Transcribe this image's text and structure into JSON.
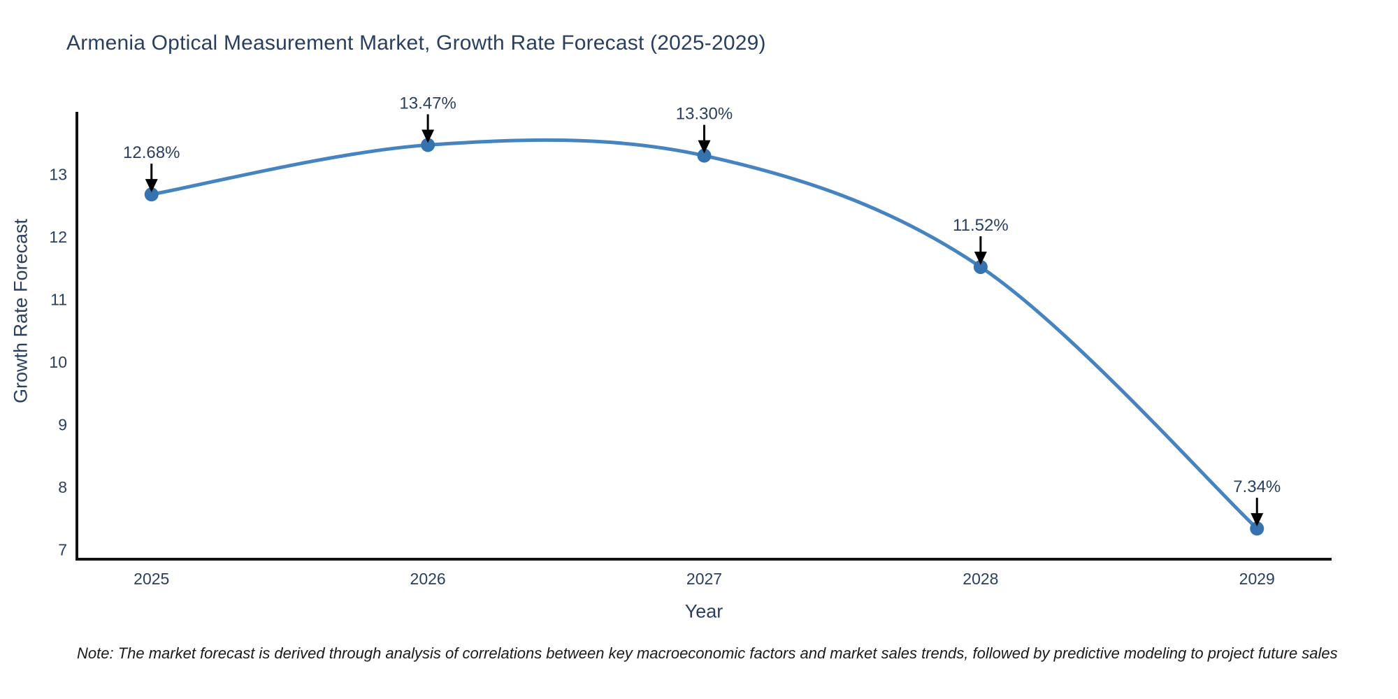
{
  "title": "Armenia Optical Measurement Market, Growth Rate Forecast (2025-2029)",
  "note": "Note: The market forecast is derived through analysis of correlations between key macroeconomic factors and market sales trends, followed by predictive modeling to project future sales",
  "chart_data": {
    "type": "line",
    "title": "Armenia Optical Measurement Market, Growth Rate Forecast (2025-2029)",
    "xlabel": "Year",
    "ylabel": "Growth Rate Forecast",
    "x": [
      2025,
      2026,
      2027,
      2028,
      2029
    ],
    "values": [
      12.68,
      13.47,
      13.3,
      11.52,
      7.34
    ],
    "point_labels": [
      "12.68%",
      "13.47%",
      "13.30%",
      "11.52%",
      "7.34%"
    ],
    "xticks": [
      "2025",
      "2026",
      "2027",
      "2028",
      "2029"
    ],
    "yticks": [
      7,
      8,
      9,
      10,
      11,
      12,
      13
    ],
    "xlim": [
      2024.73,
      2029.27
    ],
    "ylim": [
      6.85,
      14.0
    ],
    "grid": false,
    "legend": "none",
    "line_shape": "spline",
    "annotation_note": "Note: The market forecast is derived through analysis of correlations between key macroeconomic factors and market sales trends, followed by predictive modeling to project future sales",
    "colors": {
      "line": "#4584c1",
      "marker": "#3572b0",
      "axis": "#111111",
      "tick_text": "#2a3f5f",
      "title_text": "#2a3f5f",
      "annotation_text": "#2a3f5f",
      "arrow": "#000000",
      "note_text": "#1a1a1a",
      "background": "#ffffff"
    }
  }
}
